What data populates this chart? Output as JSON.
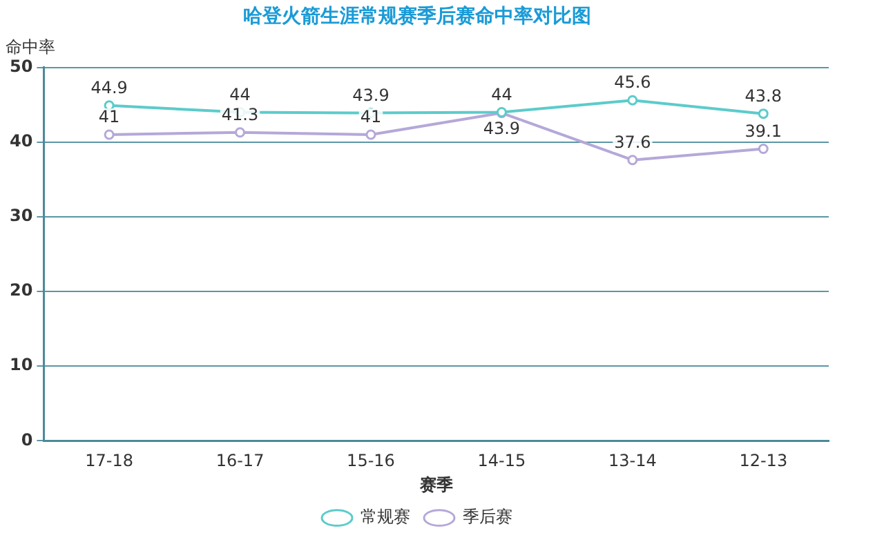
{
  "chart_data": {
    "type": "line",
    "title": "哈登火箭生涯常规赛季后赛命中率对比图",
    "xlabel": "赛季",
    "ylabel": "命中率",
    "categories": [
      "17-18",
      "16-17",
      "15-16",
      "14-15",
      "13-14",
      "12-13"
    ],
    "series": [
      {
        "name": "常规赛",
        "color": "#5ccbcb",
        "values": [
          44.9,
          44,
          43.9,
          44,
          45.6,
          43.8
        ]
      },
      {
        "name": "季后赛",
        "color": "#b5a8d8",
        "values": [
          41,
          41.3,
          41,
          43.9,
          37.6,
          39.1
        ]
      }
    ],
    "ylim": [
      0,
      50
    ],
    "yticks": [
      0,
      10,
      20,
      30,
      40,
      50
    ],
    "grid": "y",
    "legend": "bottom",
    "marker": "circle",
    "line_style": "solid",
    "data_labels": true
  }
}
